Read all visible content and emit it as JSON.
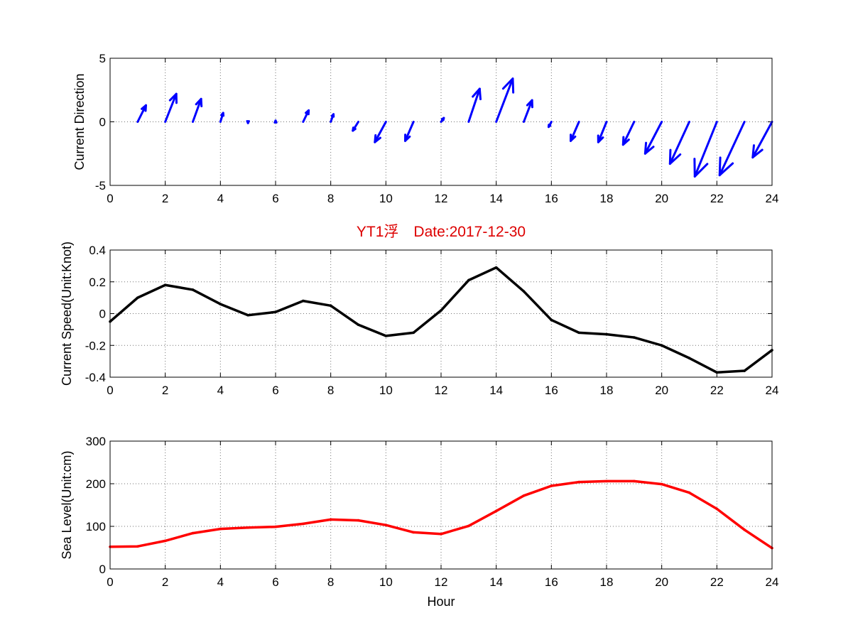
{
  "colors": {
    "arrow": "#0000ff",
    "speed_line": "#000000",
    "sea_level_line": "#ff0000",
    "title": "#dd0000"
  },
  "chart_data": [
    {
      "type": "quiver",
      "title": "",
      "xlabel": "",
      "ylabel": "Current Direction",
      "xlim": [
        0,
        24
      ],
      "ylim": [
        -5,
        5
      ],
      "xticks": [
        0,
        2,
        4,
        6,
        8,
        10,
        12,
        14,
        16,
        18,
        20,
        22,
        24
      ],
      "yticks": [
        -5,
        0,
        5
      ],
      "grid": true,
      "x": [
        1,
        2,
        3,
        4,
        5,
        6,
        7,
        8,
        9,
        10,
        11,
        12,
        13,
        14,
        15,
        16,
        17,
        18,
        19,
        20,
        21,
        22,
        23,
        24
      ],
      "u": [
        0.3,
        0.4,
        0.3,
        0.1,
        0.0,
        0.0,
        0.2,
        0.1,
        -0.2,
        -0.4,
        -0.3,
        0.1,
        0.4,
        0.6,
        0.3,
        -0.1,
        -0.3,
        -0.3,
        -0.4,
        -0.6,
        -0.7,
        -0.8,
        -0.9,
        -0.7
      ],
      "v": [
        1.3,
        2.2,
        1.8,
        0.7,
        -0.1,
        0.1,
        0.9,
        0.6,
        -0.7,
        -1.6,
        -1.5,
        0.3,
        2.6,
        3.4,
        1.7,
        -0.4,
        -1.5,
        -1.6,
        -1.8,
        -2.5,
        -3.3,
        -4.3,
        -4.2,
        -2.8
      ]
    },
    {
      "type": "line",
      "title": "YT1浮　Date:2017-12-30",
      "xlabel": "",
      "ylabel": "Current Speed(Unit:Knot)",
      "xlim": [
        0,
        24
      ],
      "ylim": [
        -0.4,
        0.4
      ],
      "xticks": [
        0,
        2,
        4,
        6,
        8,
        10,
        12,
        14,
        16,
        18,
        20,
        22,
        24
      ],
      "yticks": [
        -0.4,
        -0.2,
        0,
        0.2,
        0.4
      ],
      "grid": true,
      "x": [
        0,
        1,
        2,
        3,
        4,
        5,
        6,
        7,
        8,
        9,
        10,
        11,
        12,
        13,
        14,
        15,
        16,
        17,
        18,
        19,
        20,
        21,
        22,
        23,
        24
      ],
      "values": [
        -0.05,
        0.1,
        0.18,
        0.15,
        0.06,
        -0.01,
        0.01,
        0.08,
        0.05,
        -0.07,
        -0.14,
        -0.12,
        0.02,
        0.21,
        0.29,
        0.14,
        -0.04,
        -0.12,
        -0.13,
        -0.15,
        -0.2,
        -0.28,
        -0.37,
        -0.36,
        -0.23
      ]
    },
    {
      "type": "line",
      "title": "",
      "xlabel": "Hour",
      "ylabel": "Sea Level(Unit:cm)",
      "xlim": [
        0,
        24
      ],
      "ylim": [
        0,
        300
      ],
      "xticks": [
        0,
        2,
        4,
        6,
        8,
        10,
        12,
        14,
        16,
        18,
        20,
        22,
        24
      ],
      "yticks": [
        0,
        100,
        200,
        300
      ],
      "grid": true,
      "x": [
        0,
        1,
        2,
        3,
        4,
        5,
        6,
        7,
        8,
        9,
        10,
        11,
        12,
        13,
        14,
        15,
        16,
        17,
        18,
        19,
        20,
        21,
        22,
        23,
        24
      ],
      "values": [
        52,
        53,
        66,
        84,
        94,
        97,
        99,
        106,
        116,
        114,
        103,
        86,
        82,
        101,
        136,
        172,
        195,
        204,
        206,
        206,
        199,
        179,
        141,
        92,
        49
      ]
    }
  ]
}
